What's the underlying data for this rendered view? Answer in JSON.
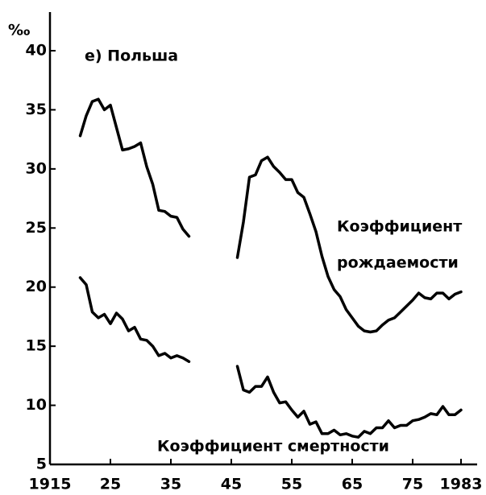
{
  "chart_data": {
    "type": "line",
    "title": "е) Польша",
    "y_unit": "‰",
    "annotations": [
      "Коэффициент",
      "рождаемости",
      "Коэффициент смертности"
    ],
    "x": [
      1920,
      1921,
      1922,
      1923,
      1924,
      1925,
      1926,
      1927,
      1928,
      1929,
      1930,
      1931,
      1932,
      1933,
      1934,
      1935,
      1936,
      1937,
      1938,
      1939,
      1940,
      1941,
      1942,
      1943,
      1944,
      1945,
      1946,
      1947,
      1948,
      1949,
      1950,
      1951,
      1952,
      1953,
      1954,
      1955,
      1956,
      1957,
      1958,
      1959,
      1960,
      1961,
      1962,
      1963,
      1964,
      1965,
      1966,
      1967,
      1968,
      1969,
      1970,
      1971,
      1972,
      1973,
      1974,
      1975,
      1976,
      1977,
      1978,
      1979,
      1980,
      1981,
      1982,
      1983
    ],
    "series": [
      {
        "color": "#000000",
        "values": [
          32.8,
          34.5,
          35.7,
          35.9,
          35.0,
          35.4,
          33.5,
          31.6,
          31.7,
          31.9,
          32.2,
          30.2,
          28.7,
          26.5,
          26.4,
          26.0,
          25.9,
          24.9,
          24.3,
          null,
          null,
          null,
          null,
          null,
          null,
          null,
          22.5,
          25.5,
          29.3,
          29.5,
          30.7,
          31.0,
          30.2,
          29.7,
          29.1,
          29.1,
          28.0,
          27.6,
          26.2,
          24.7,
          22.6,
          20.9,
          19.8,
          19.2,
          18.1,
          17.4,
          16.7,
          16.3,
          16.2,
          16.3,
          16.8,
          17.2,
          17.4,
          17.9,
          18.4,
          18.9,
          19.5,
          19.1,
          19.0,
          19.5,
          19.5,
          19.0,
          19.4,
          19.6
        ]
      },
      {
        "color": "#000000",
        "values": [
          20.8,
          20.2,
          17.9,
          17.4,
          17.7,
          16.9,
          17.8,
          17.3,
          16.3,
          16.6,
          15.6,
          15.5,
          15.0,
          14.2,
          14.4,
          14.0,
          14.2,
          14.0,
          13.7,
          null,
          null,
          null,
          null,
          null,
          null,
          null,
          13.3,
          11.3,
          11.1,
          11.6,
          11.6,
          12.4,
          11.1,
          10.2,
          10.3,
          9.6,
          9.0,
          9.5,
          8.4,
          8.6,
          7.6,
          7.6,
          7.9,
          7.5,
          7.6,
          7.4,
          7.3,
          7.8,
          7.6,
          8.1,
          8.1,
          8.7,
          8.1,
          8.3,
          8.3,
          8.7,
          8.8,
          9.0,
          9.3,
          9.2,
          9.9,
          9.2,
          9.2,
          9.6
        ]
      }
    ],
    "xlim": [
      1915,
      1986
    ],
    "xticks": [
      1915,
      {
        "value": 1925,
        "label": "25"
      },
      {
        "value": 1935,
        "label": "35"
      },
      {
        "value": 1945,
        "label": "45"
      },
      {
        "value": 1955,
        "label": "55"
      },
      {
        "value": 1965,
        "label": "65"
      },
      {
        "value": 1975,
        "label": "75"
      },
      1983
    ],
    "ylim": [
      5,
      40
    ],
    "yticks": [
      5,
      10,
      15,
      20,
      25,
      30,
      35,
      40
    ]
  }
}
